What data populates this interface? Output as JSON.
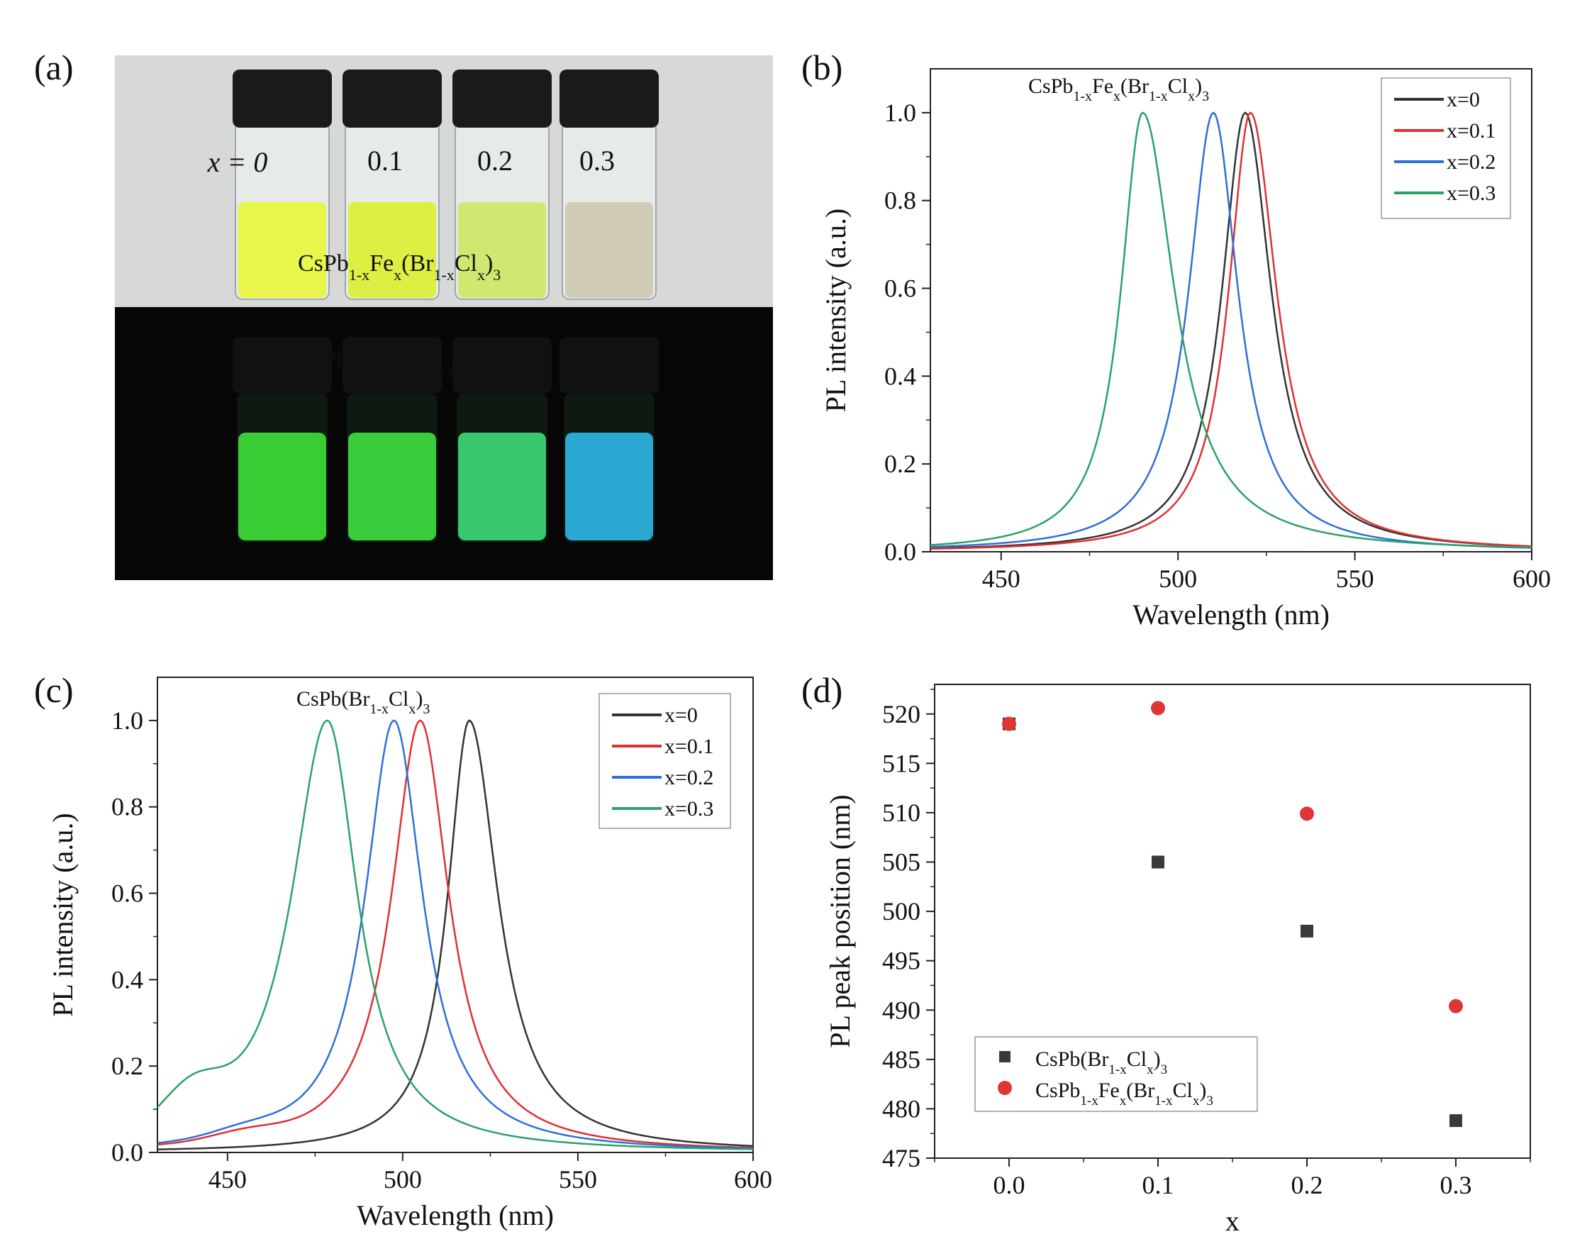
{
  "figure": {
    "panel_a": {
      "label": "(a)",
      "vial_labels": [
        "x = 0",
        "0.1",
        "0.2",
        "0.3"
      ],
      "formula_top": {
        "base": "CsPb",
        "s1": "1-x",
        "mid": "Fe",
        "s2": "x",
        "open": "(Br",
        "s3": "1-x",
        "cl": "Cl",
        "s4": "x",
        "close": ")",
        "s5": "3"
      },
      "formula_bottom": {
        "base": "CsPb",
        "s1": "1-x",
        "mid": "Fe",
        "s2": "x",
        "open": "(Br",
        "s3": "1-x",
        "cl": "Cl",
        "s4": "x",
        "close": ")",
        "s5": "3"
      },
      "colors": {
        "ambient_bg": "#d8d8d8",
        "uv_bg": "#060606",
        "cap": "#1a1a1a",
        "liquid_ambient": [
          "#e8f542",
          "#dcef3a",
          "#cde86a",
          "#cfcab2"
        ],
        "liquid_uv": [
          "#3ee03a",
          "#3fe040",
          "#3edc78",
          "#2fb8e8"
        ]
      }
    }
  },
  "chart_data": [
    {
      "panel": "(b)",
      "type": "line",
      "annotation": {
        "base": "CsPb",
        "s1": "1-x",
        "mid": "Fe",
        "s2": "x",
        "open": "(Br",
        "s3": "1-x",
        "cl": "Cl",
        "s4": "x",
        "close": ")",
        "s5": "3"
      },
      "xlabel": "Wavelength (nm)",
      "ylabel": "PL intensity (a.u.)",
      "xlim": [
        430,
        600
      ],
      "ylim": [
        0,
        1.1
      ],
      "xticks": [
        "450",
        "500",
        "550",
        "600"
      ],
      "yticks": [
        "0.0",
        "0.2",
        "0.4",
        "0.6",
        "0.8",
        "1.0"
      ],
      "legend_position": "top-right",
      "series": [
        {
          "name": "x=0",
          "color": "#333333",
          "peak": 519,
          "fwhm_left": 16,
          "fwhm_right": 18
        },
        {
          "name": "x=0.1",
          "color": "#e03030",
          "peak": 520.5,
          "fwhm_left": 15,
          "fwhm_right": 18
        },
        {
          "name": "x=0.2",
          "color": "#2f6fd8",
          "peak": 510,
          "fwhm_left": 17,
          "fwhm_right": 17
        },
        {
          "name": "x=0.3",
          "color": "#2aa268",
          "peak": 490,
          "fwhm_left": 15,
          "fwhm_right": 22
        }
      ]
    },
    {
      "panel": "(c)",
      "type": "line",
      "annotation": {
        "base": "CsPb",
        "open": "(Br",
        "s3": "1-x",
        "cl": "Cl",
        "s4": "x",
        "close": ")",
        "s5": "3"
      },
      "xlabel": "Wavelength (nm)",
      "ylabel": "PL intensity (a.u.)",
      "xlim": [
        430,
        600
      ],
      "ylim": [
        0,
        1.1
      ],
      "xticks": [
        "450",
        "500",
        "550",
        "600"
      ],
      "yticks": [
        "0.0",
        "0.2",
        "0.4",
        "0.6",
        "0.8",
        "1.0"
      ],
      "legend_position": "top-right",
      "series": [
        {
          "name": "x=0",
          "color": "#333333",
          "peak": 519,
          "fwhm_left": 15,
          "fwhm_right": 20
        },
        {
          "name": "x=0.1",
          "color": "#e03030",
          "peak": 505,
          "fwhm_left": 20,
          "fwhm_right": 20
        },
        {
          "name": "x=0.2",
          "color": "#2f6fd8",
          "peak": 497.5,
          "fwhm_left": 20,
          "fwhm_right": 20
        },
        {
          "name": "x=0.3",
          "color": "#2aa268",
          "peak": 478.5,
          "fwhm_left": 25,
          "fwhm_right": 21
        }
      ]
    },
    {
      "panel": "(d)",
      "type": "scatter",
      "xlabel": "x",
      "ylabel": "PL peak position (nm)",
      "xlim": [
        -0.05,
        0.35
      ],
      "ylim": [
        475,
        523
      ],
      "xticks": [
        "0.0",
        "0.1",
        "0.2",
        "0.3"
      ],
      "yticks": [
        "475",
        "480",
        "485",
        "490",
        "495",
        "500",
        "505",
        "510",
        "515",
        "520"
      ],
      "legend_position": "bottom-left",
      "series": [
        {
          "name": {
            "base": "CsPb",
            "open": "(Br",
            "s3": "1-x",
            "cl": "Cl",
            "s4": "x",
            "close": ")",
            "s5": "3"
          },
          "marker": "square",
          "color": "#3a3a3a",
          "x": [
            0.0,
            0.1,
            0.2,
            0.3
          ],
          "y": [
            519,
            505,
            498,
            478.8
          ]
        },
        {
          "name": {
            "base": "CsPb",
            "s1": "1-x",
            "mid": "Fe",
            "s2": "x",
            "open": "(Br",
            "s3": "1-x",
            "cl": "Cl",
            "s4": "x",
            "close": ")",
            "s5": "3"
          },
          "marker": "circle",
          "color": "#e03535",
          "x": [
            0.0,
            0.1,
            0.2,
            0.3
          ],
          "y": [
            519,
            520.6,
            509.9,
            490.4
          ]
        }
      ]
    }
  ]
}
